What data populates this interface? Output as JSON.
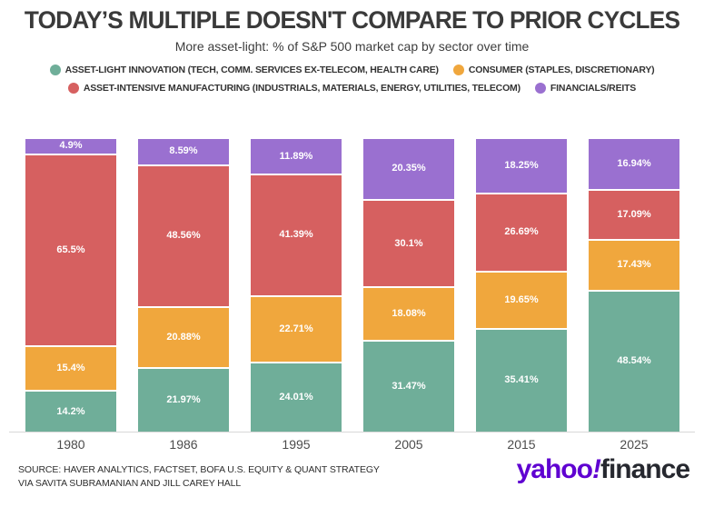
{
  "header": {
    "title": "TODAY’S MULTIPLE DOESN'T COMPARE TO PRIOR CYCLES",
    "subtitle": "More asset-light: % of S&P 500 market cap by sector over time"
  },
  "legend": [
    {
      "label": "ASSET-LIGHT INNOVATION (TECH, COMM. SERVICES EX-TELECOM, HEALTH CARE)",
      "color": "#6fae99"
    },
    {
      "label": "CONSUMER (STAPLES, DISCRETIONARY)",
      "color": "#f0a73d"
    },
    {
      "label": "ASSET-INTENSIVE MANUFACTURING (INDUSTRIALS, MATERIALS, ENERGY, UTILITIES, TELECOM)",
      "color": "#d66060"
    },
    {
      "label": "FINANCIALS/REITS",
      "color": "#9a70d0"
    }
  ],
  "chart_data": {
    "type": "bar",
    "stacked": true,
    "title": "TODAY’S MULTIPLE DOESN'T COMPARE TO PRIOR CYCLES",
    "subtitle": "More asset-light: % of S&P 500 market cap by sector over time",
    "categories": [
      "1980",
      "1986",
      "1995",
      "2005",
      "2015",
      "2025"
    ],
    "series": [
      {
        "key": "asset_light",
        "name": "ASSET-LIGHT INNOVATION (TECH, COMM. SERVICES EX-TELECOM, HEALTH CARE)",
        "color": "#6fae99",
        "values": [
          14.2,
          21.97,
          24.01,
          31.47,
          35.41,
          48.54
        ],
        "labels": [
          "14.2%",
          "21.97%",
          "24.01%",
          "31.47%",
          "35.41%",
          "48.54%"
        ]
      },
      {
        "key": "consumer",
        "name": "CONSUMER (STAPLES, DISCRETIONARY)",
        "color": "#f0a73d",
        "values": [
          15.4,
          20.88,
          22.71,
          18.08,
          19.65,
          17.43
        ],
        "labels": [
          "15.4%",
          "20.88%",
          "22.71%",
          "18.08%",
          "19.65%",
          "17.43%"
        ]
      },
      {
        "key": "manufacturing",
        "name": "ASSET-INTENSIVE MANUFACTURING (INDUSTRIALS, MATERIALS, ENERGY, UTILITIES, TELECOM)",
        "color": "#d66060",
        "values": [
          65.5,
          48.56,
          41.39,
          30.1,
          26.69,
          17.09
        ],
        "labels": [
          "65.5%",
          "48.56%",
          "41.39%",
          "30.1%",
          "26.69%",
          "17.09%"
        ]
      },
      {
        "key": "financials",
        "name": "FINANCIALS/REITS",
        "color": "#9a70d0",
        "values": [
          4.9,
          8.59,
          11.89,
          20.35,
          18.25,
          16.94
        ],
        "labels": [
          "4.9%",
          "8.59%",
          "11.89%",
          "20.35%",
          "18.25%",
          "16.94%"
        ]
      }
    ],
    "ylim": [
      0,
      100
    ],
    "grid": false,
    "legend_position": "top",
    "value_label_color": "#ffffff"
  },
  "footer": {
    "source_line1": "SOURCE: HAVER ANALYTICS, FACTSET, BOFA U.S. EQUITY & QUANT STRATEGY",
    "source_line2": "VIA SAVITA SUBRAMANIAN AND JILL CAREY HALL",
    "logo": {
      "part1": "yahoo",
      "bang": "!",
      "part2": "finance",
      "purple": "#5f01d1",
      "dark": "#26282f"
    }
  }
}
